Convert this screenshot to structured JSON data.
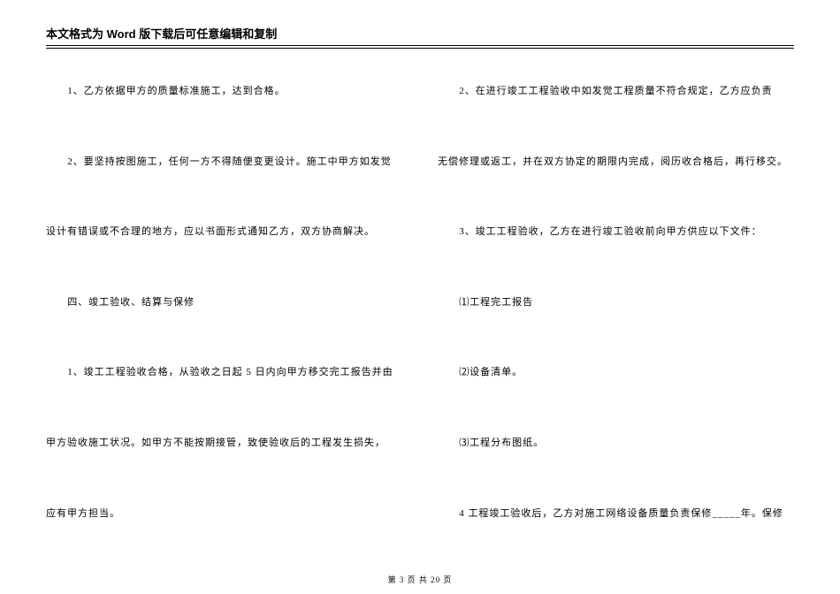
{
  "header": {
    "title": "本文格式为 Word 版下载后可任意编辑和复制"
  },
  "left": {
    "p1": "1、乙方依据甲方的质量标准施工，达到合格。",
    "p2": "2、要坚持按图施工，任何一方不得随便变更设计。施工中甲方如发觉",
    "p3": "设计有错误或不合理的地方，应以书面形式通知乙方，双方协商解决。",
    "p4": "四、竣工验收、结算与保修",
    "p5": "1、竣工工程验收合格，从验收之日起 5 日内向甲方移交完工报告并由",
    "p6": "甲方验收施工状况。如甲方不能按期接管，致使验收后的工程发生损失，",
    "p7": "应有甲方担当。"
  },
  "right": {
    "p1": "2、在进行竣工工程验收中如发觉工程质量不符合规定，乙方应负责",
    "p2": "无偿修理或返工，并在双方协定的期限内完成，阅历收合格后，再行移交。",
    "p3": "3、竣工工程验收，乙方在进行竣工验收前向甲方供应以下文件：",
    "p4": "⑴工程完工报告",
    "p5": "⑵设备清单。",
    "p6": "⑶工程分布图纸。",
    "p7": "4 工程竣工验收后，乙方对施工网络设备质量负责保修_____年。保修"
  },
  "footer": {
    "text": "第 3 页 共 20 页"
  }
}
